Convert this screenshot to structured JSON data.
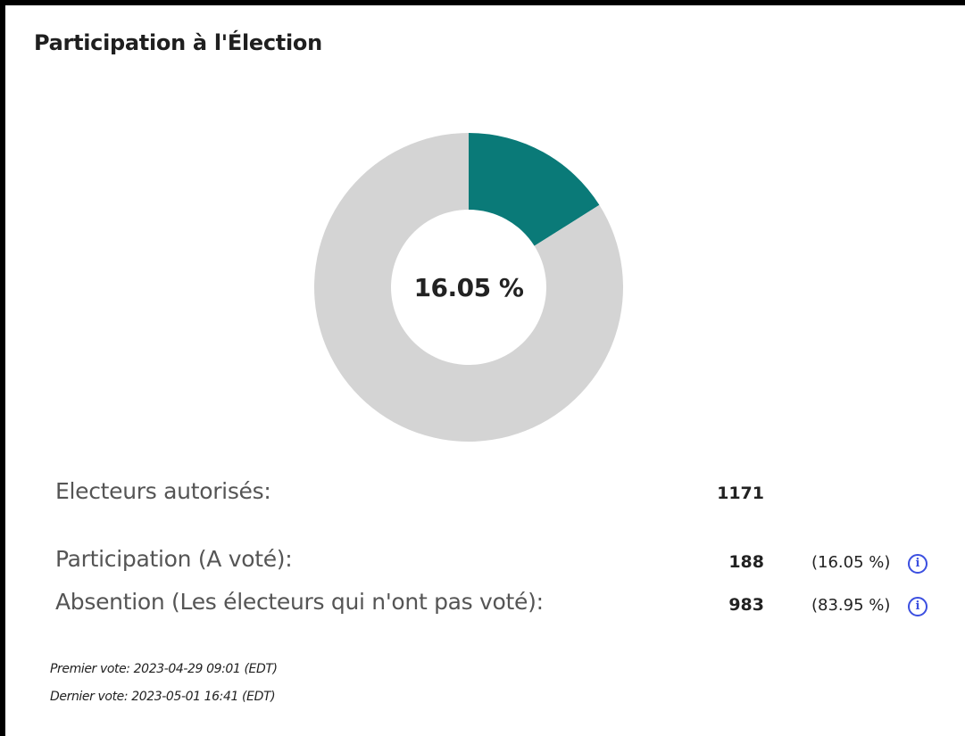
{
  "panel": {
    "title": "Participation à l'Élection"
  },
  "donut": {
    "center_label": "16.05 %"
  },
  "stats": {
    "authorized": {
      "label": "Electeurs autorisés:",
      "value": "1171"
    },
    "participation": {
      "label": "Participation (A voté):",
      "value": "188",
      "percent": "(16.05 %)"
    },
    "abstention": {
      "label": "Absention (Les électeurs qui n'ont pas voté):",
      "value": "983",
      "percent": "(83.95 %)"
    }
  },
  "info_icon_glyph": "i",
  "votes": {
    "first": "Premier vote: 2023-04-29 09:01 (EDT)",
    "last": "Dernier vote: 2023-05-01 16:41 (EDT)"
  },
  "chart_data": {
    "type": "pie",
    "categories": [
      "Participation (A voté)",
      "Absention (Les électeurs qui n'ont pas voté)"
    ],
    "values": [
      188,
      983
    ],
    "percentages": [
      16.05,
      83.95
    ],
    "colors": [
      "#0a7a78",
      "#d4d4d4"
    ],
    "donut": true,
    "center_text": "16.05 %"
  }
}
